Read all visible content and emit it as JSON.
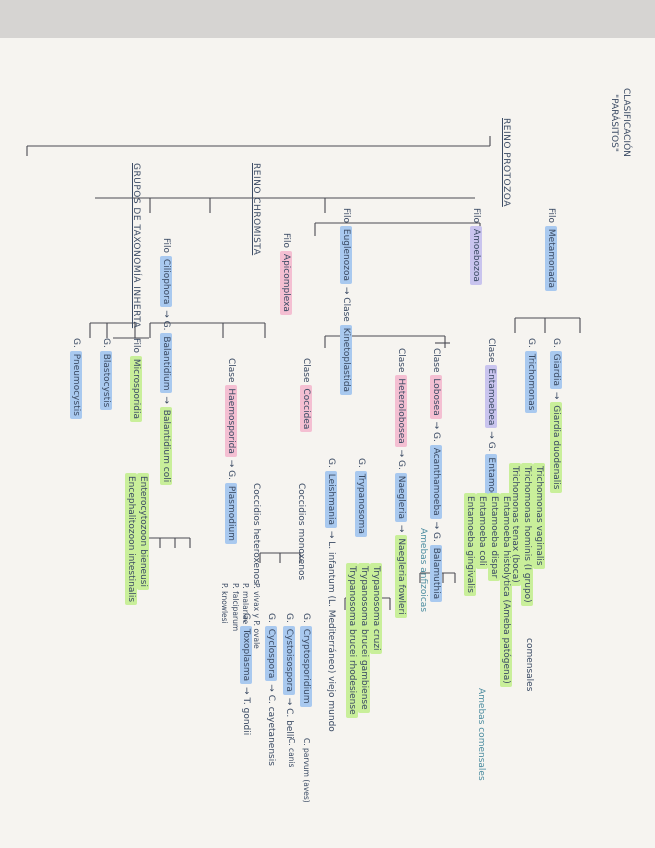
{
  "heading": {
    "clasificacion": "CLASIFICACIÓN",
    "parasitos": "\"PARÁSITOS\""
  },
  "reino_protozoa": "REINO PROTOZOA",
  "reino_chromista": "REINO CHROMISTA",
  "grupos_taxonomia": "GRUPOS DE TAXONOMÍA INHERTA",
  "filos": {
    "metamonada": [
      "Filo",
      "Metamonada"
    ],
    "amoebozoa": [
      "Filo",
      "Amoebozoa"
    ],
    "euglenozoa": [
      "Filo",
      "Euglenozoa",
      "→ Clase",
      "Kinetoplastida"
    ],
    "apicomplexa": [
      "Filo",
      "Apicomplexa"
    ],
    "ciliophora": [
      "Filo",
      "Ciliophora",
      "→ G.",
      "Balantidium",
      "→",
      "Balantidium coli"
    ]
  },
  "metamonada_items": [
    [
      "G.",
      "Giardia",
      "→",
      "Giardia duodenalis"
    ],
    [
      "G.",
      "Trichomonas"
    ],
    [
      "Trichomonas vaginalis"
    ],
    [
      "Trichomonas hominis (I grupo)"
    ],
    [
      "Trichomonas tenax (boca)"
    ],
    [
      "comensales"
    ]
  ],
  "amoebozoa_items": [
    [
      "Clase",
      "Entamoebea",
      "→ G.",
      "Entamoeba"
    ],
    [
      "Entamoeba histolytica (Ameba patógena)"
    ],
    [
      "Entamoeba dispar"
    ],
    [
      "Entamoeba coli"
    ],
    [
      "Entamoeba gingivalis"
    ],
    [
      "Amebas comensales"
    ],
    [
      "Clase",
      "Lobosea",
      "→ G.",
      "Acanthamoeba",
      "→ G.",
      "Balamuthia"
    ],
    [
      "Amebas anfizoicas"
    ],
    [
      "Clase",
      "Heterolobosea",
      "→ G.",
      "Naegleria",
      "→",
      "Naegleria fowleri"
    ]
  ],
  "kinetoplastida_items": [
    [
      "G.",
      "Trypanosoma"
    ],
    [
      "Trypanosoma cruzi"
    ],
    [
      "Trypanosoma brucei gambiense"
    ],
    [
      "Trypanosoma brucei rhodesiense"
    ],
    [
      "G.",
      "Leishmania",
      "→ L. infantum (L. Mediterráneo) viejo mundo"
    ]
  ],
  "apicomplexa_items": [
    [
      "Clase",
      "Coccidea"
    ],
    [
      "Coccidios monoxenos"
    ],
    [
      "G.",
      "Cryptosporidium",
      "C. parvum (aves)"
    ],
    [
      "C. canis"
    ],
    [
      "G.",
      "Cystoisospora",
      "→ C. belli"
    ],
    [
      "G.",
      "Cyclospora",
      "→ C. cayetanensis"
    ],
    [
      "Coccidios heteroxenos"
    ],
    [
      "G.",
      "Toxoplasma",
      "→ T. gondii"
    ],
    [
      "Clase",
      "Haemosporida",
      "→ G.",
      "Plasmodium"
    ],
    [
      "P. vivax y P. ovale"
    ],
    [
      "P. malariae"
    ],
    [
      "P. falciparum"
    ],
    [
      "P. knowlesi"
    ]
  ],
  "grupos_items": [
    [
      "Filo",
      "Microsporidia"
    ],
    [
      "Enterocytozoon bieneusi"
    ],
    [
      "Encephalitozoon intestinalis"
    ],
    [
      "G.",
      "Blastocystis"
    ],
    [
      "G.",
      "Pneumocystis"
    ]
  ]
}
